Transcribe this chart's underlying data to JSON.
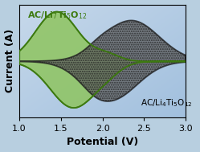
{
  "xlabel": "Potential (V)",
  "ylabel": "Current (A)",
  "xlim": [
    1.0,
    3.0
  ],
  "ylim": [
    -1.0,
    1.0
  ],
  "xticks": [
    1.0,
    1.5,
    2.0,
    2.5,
    3.0
  ],
  "bg_color": "#b8cfe0",
  "green_fill": "#8dc45a",
  "green_edge": "#3d7a10",
  "gray_fill": "#606060",
  "gray_edge": "#1a1a1a",
  "label_green": "AC/Li$_7$Ti$_5$O$_{12}$",
  "label_gray": "AC/Li$_4$Ti$_5$O$_{12}$",
  "xlabel_fontsize": 9,
  "ylabel_fontsize": 9,
  "tick_fontsize": 8
}
